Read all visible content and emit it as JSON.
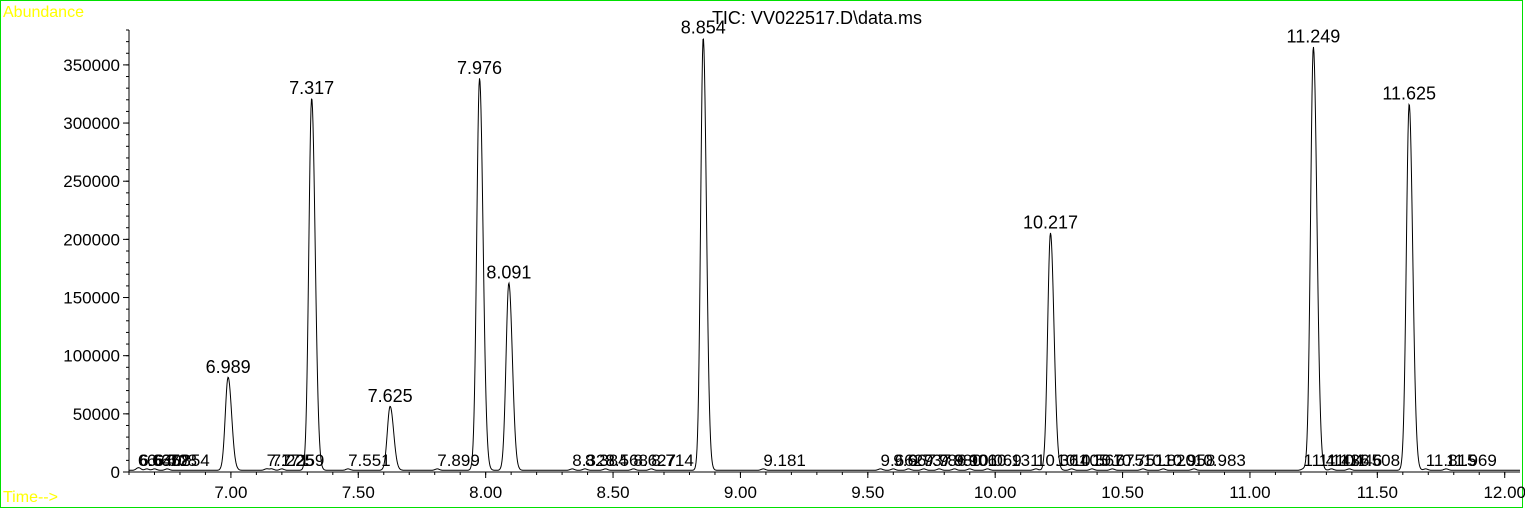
{
  "chart_data": {
    "type": "line",
    "title": "TIC: VV022517.D\\data.ms",
    "ylabel": "Abundance",
    "xlabel": "Time-->",
    "xlim": [
      6.6,
      12.06
    ],
    "ylim": [
      0,
      380000
    ],
    "x_ticks": [
      7.0,
      7.5,
      8.0,
      8.5,
      9.0,
      9.5,
      10.0,
      10.5,
      11.0,
      11.5,
      12.0
    ],
    "x_tick_labels": [
      "7.00",
      "7.50",
      "8.00",
      "8.50",
      "9.00",
      "9.50",
      "10.00",
      "10.50",
      "11.00",
      "11.50",
      "12.00"
    ],
    "y_ticks": [
      0,
      50000,
      100000,
      150000,
      200000,
      250000,
      300000,
      350000
    ],
    "y_tick_labels": [
      "0",
      "50000",
      "100000",
      "150000",
      "200000",
      "250000",
      "300000",
      "350000"
    ],
    "colors": {
      "trace": "#000000",
      "frame": "#00e000",
      "axis_labels": "#ffff00"
    },
    "peaks": [
      {
        "rt": 6.989,
        "label": "6.989",
        "height": 80000,
        "width": 0.011
      },
      {
        "rt": 7.317,
        "label": "7.317",
        "height": 320000,
        "width": 0.011
      },
      {
        "rt": 7.625,
        "label": "7.625",
        "height": 55000,
        "width": 0.011
      },
      {
        "rt": 7.976,
        "label": "7.976",
        "height": 337000,
        "width": 0.011
      },
      {
        "rt": 8.091,
        "label": "8.091",
        "height": 161000,
        "width": 0.011
      },
      {
        "rt": 8.854,
        "label": "8.854",
        "height": 372000,
        "width": 0.01
      },
      {
        "rt": 10.217,
        "label": "10.217",
        "height": 204000,
        "width": 0.011
      },
      {
        "rt": 11.249,
        "label": "11.249",
        "height": 364000,
        "width": 0.011
      },
      {
        "rt": 11.625,
        "label": "11.625",
        "height": 315000,
        "width": 0.011
      }
    ],
    "baseline_labels": [
      {
        "x": 6.635,
        "text": "6.635"
      },
      {
        "x": 6.64,
        "text": "6.640"
      },
      {
        "x": 6.67,
        "text": "6.672"
      },
      {
        "x": 6.7,
        "text": "6.708"
      },
      {
        "x": 6.75,
        "text": "6.854"
      },
      {
        "x": 7.14,
        "text": "7.171"
      },
      {
        "x": 7.16,
        "text": "7.225"
      },
      {
        "x": 7.2,
        "text": "7.259"
      },
      {
        "x": 7.46,
        "text": "7.551"
      },
      {
        "x": 7.81,
        "text": "7.899"
      },
      {
        "x": 8.34,
        "text": "8.328"
      },
      {
        "x": 8.39,
        "text": "8.384"
      },
      {
        "x": 8.47,
        "text": "8.568"
      },
      {
        "x": 8.58,
        "text": "8.627"
      },
      {
        "x": 8.65,
        "text": "8.714"
      },
      {
        "x": 9.09,
        "text": "9.181"
      },
      {
        "x": 9.55,
        "text": "9.662"
      },
      {
        "x": 9.6,
        "text": "9.667"
      },
      {
        "x": 9.66,
        "text": "9.737"
      },
      {
        "x": 9.72,
        "text": "9.786"
      },
      {
        "x": 9.78,
        "text": "9.880"
      },
      {
        "x": 9.84,
        "text": "9.906"
      },
      {
        "x": 9.9,
        "text": "10.069"
      },
      {
        "x": 9.97,
        "text": "10.131"
      },
      {
        "x": 10.16,
        "text": "10.361"
      },
      {
        "x": 10.24,
        "text": "10.405"
      },
      {
        "x": 10.3,
        "text": "10.567"
      },
      {
        "x": 10.38,
        "text": "10.675"
      },
      {
        "x": 10.46,
        "text": "10.751"
      },
      {
        "x": 10.58,
        "text": "10.820"
      },
      {
        "x": 10.66,
        "text": "10.958"
      },
      {
        "x": 10.78,
        "text": "10.983"
      },
      {
        "x": 11.21,
        "text": "11.410"
      },
      {
        "x": 11.27,
        "text": "11.436"
      },
      {
        "x": 11.32,
        "text": "11.446"
      },
      {
        "x": 11.39,
        "text": "11.508"
      },
      {
        "x": 11.69,
        "text": "11.815"
      },
      {
        "x": 11.77,
        "text": "11.969"
      }
    ]
  }
}
